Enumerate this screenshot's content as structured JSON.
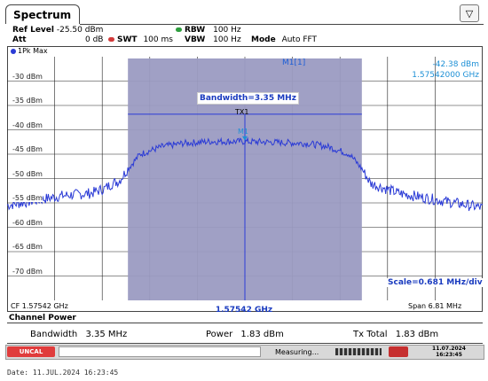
{
  "tab": {
    "title": "Spectrum"
  },
  "header": {
    "ref_level_label": "Ref Level",
    "ref_level_value": "-25.50 dBm",
    "att_label": "Att",
    "att_value": "0 dB",
    "swt_label": "SWT",
    "swt_value": "100 ms",
    "rbw_label": "RBW",
    "rbw_value": "100 Hz",
    "vbw_label": "VBW",
    "vbw_value": "100 Hz",
    "mode_label": "Mode",
    "mode_value": "Auto FFT",
    "colors": {
      "swt": "#d23a3a",
      "rbw": "#2e9e3e",
      "vbw": "#2e9e3e"
    }
  },
  "trace": {
    "label": "1Pk Max",
    "color": "#2b3bd6"
  },
  "y_axis": [
    "-30 dBm",
    "-35 dBm",
    "-40 dBm",
    "-45 dBm",
    "-50 dBm",
    "-55 dBm",
    "-60 dBm",
    "-65 dBm",
    "-70 dBm"
  ],
  "marker": {
    "name": "M1[1]",
    "level": "-42.38 dBm",
    "freq": "1.57542000 GHz",
    "tag": "M1"
  },
  "channel": {
    "bandwidth_label": "Bandwidth=3.35 MHz",
    "tx_label": "TX1",
    "scale_label": "Scale=0.681 MHz/div",
    "fill": "#9b9bc2"
  },
  "x_axis": {
    "cf": "CF 1.57542 GHz",
    "center": "1.57542 GHz",
    "span": "Span 6.81 MHz"
  },
  "chart_data": {
    "type": "line",
    "title": "",
    "xlabel": "",
    "ylabel": "",
    "x_range_mhz": [
      -3.405,
      3.405
    ],
    "ylim": [
      -75,
      -25
    ],
    "series": [
      {
        "name": "1Pk Max",
        "x": [
          -3.405,
          -3.0,
          -2.6,
          -2.2,
          -2.0,
          -1.9,
          -1.8,
          -1.675,
          -1.5,
          -1.2,
          -0.9,
          -0.5,
          0.0,
          0.5,
          0.9,
          1.2,
          1.5,
          1.675,
          1.8,
          1.9,
          2.0,
          2.2,
          2.6,
          3.0,
          3.405
        ],
        "y": [
          -55.5,
          -54.5,
          -53.5,
          -53,
          -52,
          -51,
          -50.5,
          -48,
          -45,
          -43.5,
          -42.8,
          -42.4,
          -42.4,
          -42.6,
          -42.8,
          -43.5,
          -45,
          -48,
          -51,
          -51.5,
          -52,
          -53,
          -54,
          -55,
          -56
        ]
      }
    ]
  },
  "results": {
    "section_title": "Channel Power",
    "bandwidth_label": "Bandwidth",
    "bandwidth_value": "3.35 MHz",
    "power_label": "Power",
    "power_value": "1.83 dBm",
    "txtotal_label": "Tx Total",
    "txtotal_value": "1.83 dBm"
  },
  "status": {
    "uncal": "UNCAL",
    "measuring": "Measuring...",
    "date": "11.07.2024",
    "time": "16:23:45"
  },
  "footer": {
    "date": "Date: 11.JUL.2024  16:23:45"
  }
}
